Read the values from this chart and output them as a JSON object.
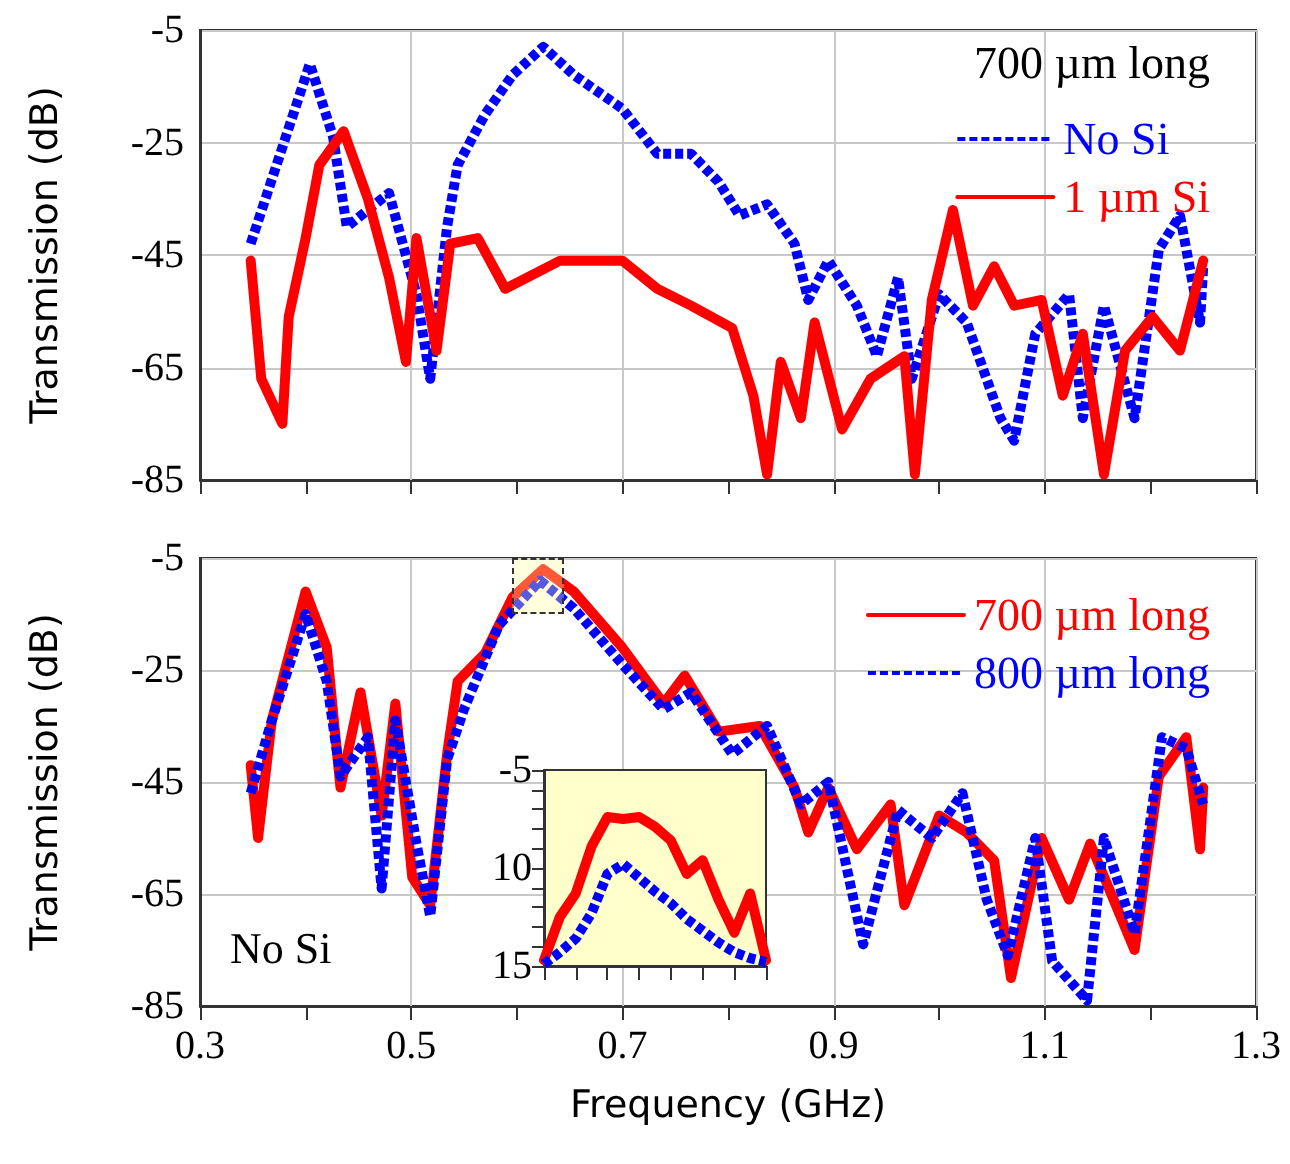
{
  "chart_data": [
    {
      "type": "line",
      "ylabel": "Transmission (dB)",
      "legend_title": "700 µm long",
      "legend": "top right",
      "grid": true,
      "tick_labels": "y",
      "marker": "none",
      "xlim": [
        0.3,
        1.3
      ],
      "xticks": [
        0.3,
        {
          "value": 0.4,
          "label": null
        },
        0.5,
        {
          "value": 0.6,
          "label": null
        },
        0.7,
        {
          "value": 0.8,
          "label": null
        },
        0.9,
        {
          "value": 1.0,
          "label": null
        },
        1.1,
        {
          "value": 1.2,
          "label": null
        },
        1.3
      ],
      "ylim": [
        -85,
        -5
      ],
      "yticks": [
        -85,
        -65,
        -45,
        -25,
        -5
      ],
      "series": [
        {
          "name": "No Si",
          "color": "#0000ff",
          "line_style": "dotted",
          "x": [
            0.348,
            0.404,
            0.426,
            0.439,
            0.479,
            0.505,
            0.518,
            0.534,
            0.544,
            0.57,
            0.596,
            0.625,
            0.654,
            0.7,
            0.733,
            0.765,
            0.791,
            0.811,
            0.837,
            0.863,
            0.876,
            0.895,
            0.922,
            0.941,
            0.961,
            0.974,
            1.0,
            1.026,
            1.058,
            1.071,
            1.091,
            1.123,
            1.136,
            1.156,
            1.185,
            1.208,
            1.228,
            1.247,
            1.25
          ],
          "values": [
            -43,
            -11,
            -24,
            -40,
            -34,
            -52,
            -67,
            -40,
            -29,
            -20,
            -13,
            -8,
            -13,
            -19,
            -27,
            -27,
            -32,
            -38,
            -36,
            -43,
            -53,
            -46,
            -54,
            -63,
            -49,
            -67,
            -52,
            -57,
            -74,
            -78,
            -59,
            -52,
            -74,
            -54,
            -74,
            -44,
            -38,
            -57,
            -47
          ]
        },
        {
          "name": "1 µm Si",
          "color": "#ff0000",
          "line_style": "solid",
          "x": [
            0.348,
            0.358,
            0.378,
            0.384,
            0.4,
            0.413,
            0.436,
            0.459,
            0.479,
            0.495,
            0.505,
            0.524,
            0.537,
            0.563,
            0.589,
            0.641,
            0.7,
            0.733,
            0.765,
            0.804,
            0.824,
            0.837,
            0.85,
            0.869,
            0.882,
            0.908,
            0.935,
            0.967,
            0.977,
            0.993,
            1.013,
            1.032,
            1.052,
            1.071,
            1.097,
            1.117,
            1.136,
            1.156,
            1.176,
            1.202,
            1.228,
            1.25
          ],
          "values": [
            -46,
            -67,
            -75,
            -56,
            -42,
            -29,
            -23,
            -35,
            -49,
            -64,
            -42,
            -62,
            -43,
            -42,
            -51,
            -46,
            -46,
            -51,
            -54,
            -58,
            -70,
            -84,
            -64,
            -74,
            -57,
            -76,
            -67,
            -63,
            -84,
            -53,
            -37,
            -54,
            -47,
            -54,
            -53,
            -70,
            -59,
            -84,
            -62,
            -56,
            -62,
            -46
          ]
        }
      ]
    },
    {
      "type": "line",
      "xlabel": "Frequency (GHz)",
      "ylabel": "Transmission (dB)",
      "legend": "top right",
      "grid": true,
      "marker": "none",
      "annotations": [
        "No Si"
      ],
      "xlim": [
        0.3,
        1.3
      ],
      "xticks": [
        0.3,
        {
          "value": 0.4,
          "label": null
        },
        0.5,
        {
          "value": 0.6,
          "label": null
        },
        0.7,
        {
          "value": 0.8,
          "label": null
        },
        0.9,
        {
          "value": 1.0,
          "label": null
        },
        1.1,
        {
          "value": 1.2,
          "label": null
        },
        1.3
      ],
      "ylim": [
        -85,
        -5
      ],
      "yticks": [
        -85,
        -65,
        -45,
        -25,
        -5
      ],
      "series": [
        {
          "name": "700 µm long",
          "color": "#ff0000",
          "line_style": "solid",
          "x": [
            0.348,
            0.355,
            0.368,
            0.4,
            0.42,
            0.433,
            0.452,
            0.472,
            0.485,
            0.501,
            0.518,
            0.534,
            0.544,
            0.57,
            0.596,
            0.625,
            0.654,
            0.7,
            0.739,
            0.759,
            0.791,
            0.83,
            0.863,
            0.876,
            0.895,
            0.922,
            0.954,
            0.967,
            1.0,
            1.026,
            1.052,
            1.068,
            1.097,
            1.123,
            1.143,
            1.185,
            1.208,
            1.234,
            1.247,
            1.25
          ],
          "values": [
            -42,
            -55,
            -34,
            -11,
            -21,
            -46,
            -29,
            -51,
            -31,
            -62,
            -67,
            -40,
            -27,
            -22,
            -12,
            -7,
            -11,
            -21,
            -31,
            -26,
            -36,
            -35,
            -46,
            -54,
            -46,
            -57,
            -49,
            -67,
            -51,
            -54,
            -59,
            -80,
            -55,
            -66,
            -56,
            -75,
            -44,
            -37,
            -57,
            -46
          ]
        },
        {
          "name": "800 µm long",
          "color": "#0000ff",
          "line_style": "dotted",
          "x": [
            0.348,
            0.368,
            0.4,
            0.42,
            0.433,
            0.459,
            0.472,
            0.485,
            0.505,
            0.518,
            0.534,
            0.55,
            0.583,
            0.622,
            0.654,
            0.7,
            0.739,
            0.765,
            0.804,
            0.837,
            0.869,
            0.895,
            0.928,
            0.961,
            0.993,
            1.022,
            1.045,
            1.065,
            1.091,
            1.107,
            1.14,
            1.156,
            1.185,
            1.211,
            1.234,
            1.25
          ],
          "values": [
            -47,
            -34,
            -15,
            -27,
            -44,
            -37,
            -64,
            -34,
            -56,
            -69,
            -41,
            -32,
            -17,
            -9,
            -14,
            -24,
            -32,
            -29,
            -40,
            -35,
            -49,
            -45,
            -74,
            -50,
            -55,
            -47,
            -66,
            -76,
            -55,
            -77,
            -84,
            -55,
            -72,
            -37,
            -39,
            -49
          ]
        }
      ]
    },
    {
      "type": "line",
      "tick_labels": "y",
      "marker": "none",
      "categories": [
        null,
        null,
        null,
        null,
        null,
        null,
        null,
        null,
        null,
        null,
        null,
        null,
        null,
        null,
        null
      ],
      "ylim": [
        -15,
        -5
      ],
      "yticks": [
        {
          "value": -15,
          "label": "15"
        },
        {
          "value": -14,
          "label": null
        },
        {
          "value": -13,
          "label": null
        },
        {
          "value": -12,
          "label": null
        },
        {
          "value": -11,
          "label": null
        },
        {
          "value": -10,
          "label": "10"
        },
        {
          "value": -9,
          "label": null
        },
        {
          "value": -8,
          "label": null
        },
        {
          "value": -7,
          "label": null
        },
        {
          "value": -6,
          "label": null
        },
        -5
      ],
      "series": [
        {
          "color": "#ff0000",
          "line_style": "solid",
          "values": [
            -14.7,
            -12.5,
            -11.3,
            -8.9,
            -7.4,
            -7.5,
            -7.4,
            -7.9,
            -8.6,
            -10.3,
            -9.6,
            -11.6,
            -13.3,
            -11.3,
            -14.7
          ]
        },
        {
          "color": "#0000ff",
          "line_style": "dotted",
          "values": [
            -14.9,
            -14.3,
            -13.6,
            -12.3,
            -10.3,
            -9.8,
            -10.5,
            -11.2,
            -11.8,
            -12.6,
            -13.2,
            -13.8,
            -14.3,
            -14.6,
            -14.8
          ]
        }
      ]
    }
  ]
}
